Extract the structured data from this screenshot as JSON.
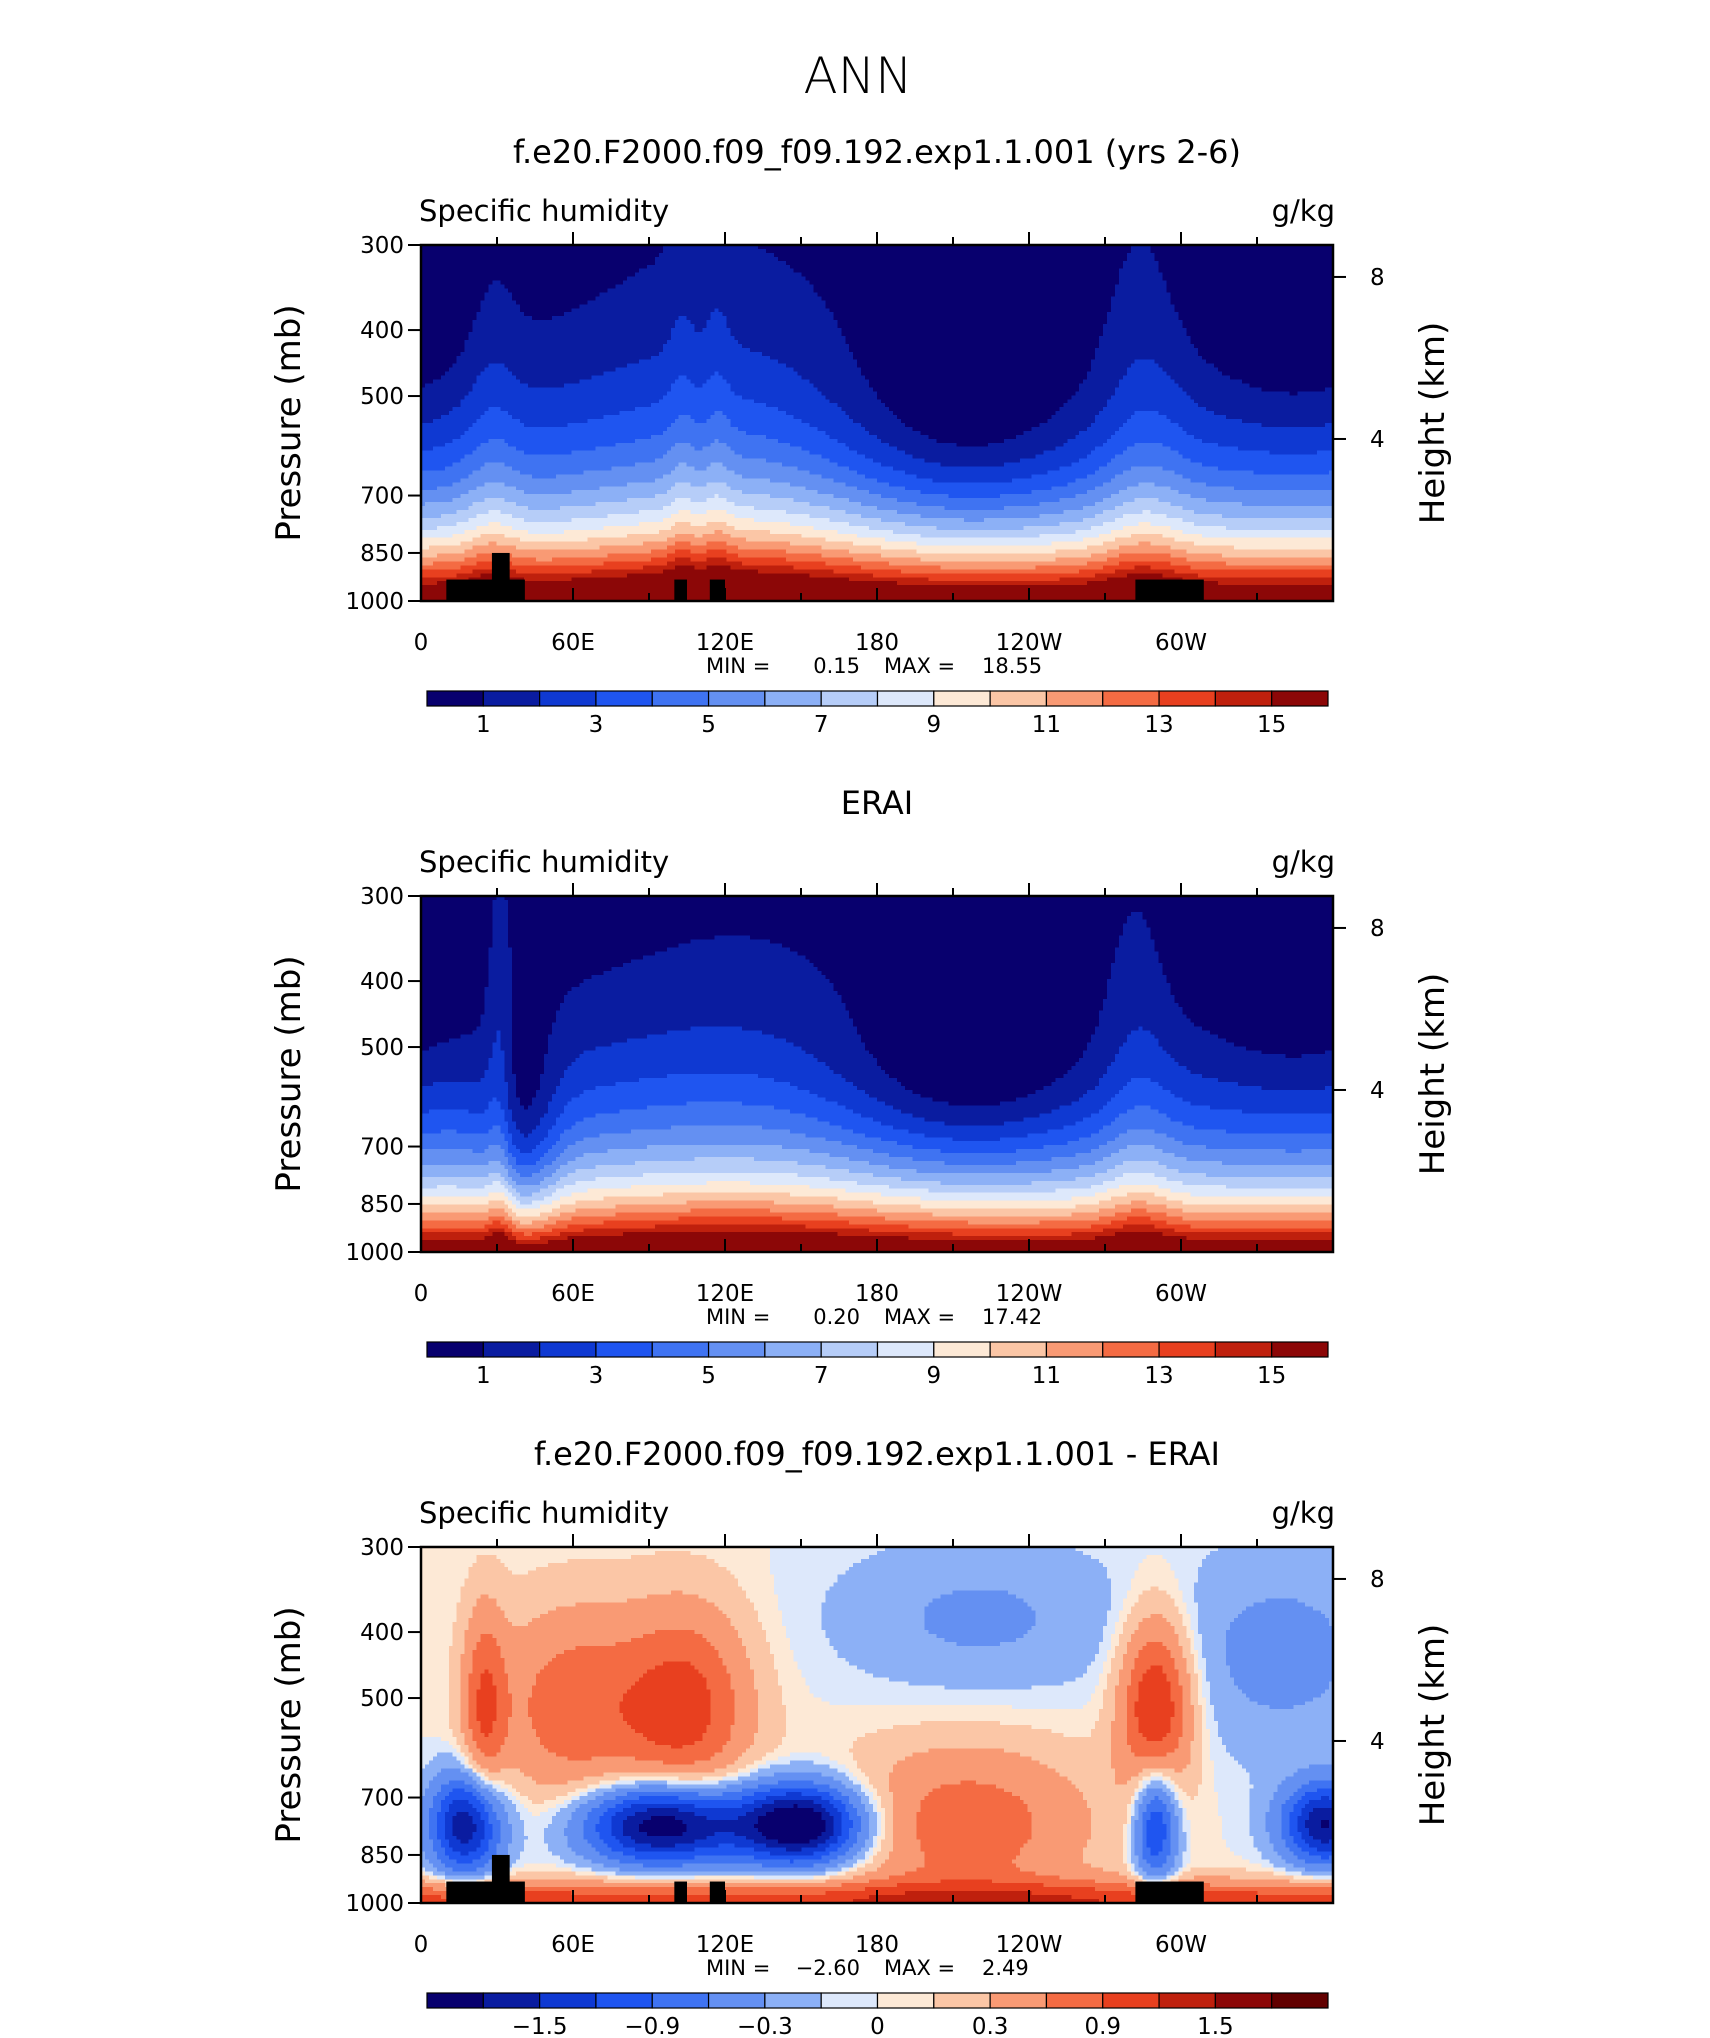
{
  "figure": {
    "title": "ANN"
  },
  "chart_data": [
    {
      "type": "heatmap",
      "title": "f.e20.F2000.f09_f09.192.exp1.1.001 (yrs 2-6)",
      "left_label": "Specific humidity",
      "right_label": "g/kg",
      "xlabel": "",
      "ylabel": "Pressure (mb)",
      "y2label": "Height (km)",
      "x_ticks": [
        "0",
        "60E",
        "120E",
        "180",
        "120W",
        "60W"
      ],
      "x_tick_values": [
        0,
        60,
        120,
        180,
        240,
        300
      ],
      "xlim": [
        0,
        360
      ],
      "y_ticks": [
        "300",
        "400",
        "500",
        "700",
        "850",
        "1000"
      ],
      "y_tick_values": [
        300,
        400,
        500,
        700,
        850,
        1000
      ],
      "ylim": [
        1000,
        300
      ],
      "y2_ticks": [
        "8",
        "4"
      ],
      "y2_tick_values": [
        8,
        4
      ],
      "min_label": "MIN =",
      "min": "0.15",
      "max_label": "MAX =",
      "max": "18.55",
      "colorbar_labels": [
        "1",
        "3",
        "5",
        "7",
        "9",
        "11",
        "13",
        "15"
      ],
      "colorbar_levels": [
        1,
        2,
        3,
        4,
        5,
        6,
        7,
        8,
        9,
        10,
        11,
        12,
        13,
        14,
        15
      ],
      "palette": "sequential",
      "features": {
        "moist_tongues_lon": [
          30,
          105,
          120,
          280
        ],
        "dry_upper_lon": [
          200,
          240
        ]
      }
    },
    {
      "type": "heatmap",
      "title": "ERAI",
      "left_label": "Specific humidity",
      "right_label": "g/kg",
      "xlabel": "",
      "ylabel": "Pressure (mb)",
      "y2label": "Height (km)",
      "x_ticks": [
        "0",
        "60E",
        "120E",
        "180",
        "120W",
        "60W"
      ],
      "x_tick_values": [
        0,
        60,
        120,
        180,
        240,
        300
      ],
      "xlim": [
        0,
        360
      ],
      "y_ticks": [
        "300",
        "400",
        "500",
        "700",
        "850",
        "1000"
      ],
      "y_tick_values": [
        300,
        400,
        500,
        700,
        850,
        1000
      ],
      "ylim": [
        1000,
        300
      ],
      "y2_ticks": [
        "8",
        "4"
      ],
      "y2_tick_values": [
        8,
        4
      ],
      "min_label": "MIN =",
      "min": "0.20",
      "max_label": "MAX =",
      "max": "17.42",
      "colorbar_labels": [
        "1",
        "3",
        "5",
        "7",
        "9",
        "11",
        "13",
        "15"
      ],
      "colorbar_levels": [
        1,
        2,
        3,
        4,
        5,
        6,
        7,
        8,
        9,
        10,
        11,
        12,
        13,
        14,
        15
      ],
      "palette": "sequential",
      "features": {
        "moist_tongues_lon": [
          30,
          280
        ],
        "dry_upper_lon": [
          200,
          240
        ]
      }
    },
    {
      "type": "heatmap",
      "title": "f.e20.F2000.f09_f09.192.exp1.1.001 - ERAI",
      "left_label": "Specific humidity",
      "right_label": "g/kg",
      "xlabel": "",
      "ylabel": "Pressure (mb)",
      "y2label": "Height (km)",
      "x_ticks": [
        "0",
        "60E",
        "120E",
        "180",
        "120W",
        "60W"
      ],
      "x_tick_values": [
        0,
        60,
        120,
        180,
        240,
        300
      ],
      "xlim": [
        0,
        360
      ],
      "y_ticks": [
        "300",
        "400",
        "500",
        "700",
        "850",
        "1000"
      ],
      "y_tick_values": [
        300,
        400,
        500,
        700,
        850,
        1000
      ],
      "ylim": [
        1000,
        300
      ],
      "y2_ticks": [
        "8",
        "4"
      ],
      "y2_tick_values": [
        8,
        4
      ],
      "min_label": "MIN =",
      "min": "−2.60",
      "max_label": "MAX =",
      "max": "2.49",
      "colorbar_labels": [
        "−1.5",
        "−0.9",
        "−0.3",
        "0",
        "0.3",
        "0.9",
        "1.5"
      ],
      "colorbar_levels": [
        -1.8,
        -1.5,
        -1.2,
        -0.9,
        -0.6,
        -0.3,
        -0.1,
        0,
        0.1,
        0.3,
        0.6,
        0.9,
        1.2,
        1.5,
        1.8
      ],
      "palette": "diverging",
      "features": {
        "dry_blobs": [
          {
            "lon": 95,
            "p": 850
          },
          {
            "lon": 150,
            "p": 850
          },
          {
            "lon": 20,
            "p": 850
          },
          {
            "lon": 355,
            "p": 850
          }
        ],
        "moist_blobs": [
          {
            "lon": 105,
            "p": 500
          },
          {
            "lon": 290,
            "p": 500
          },
          {
            "lon": 25,
            "p": 500
          }
        ]
      }
    }
  ],
  "topography": [
    {
      "lon0": 10,
      "lon1": 41,
      "p": 930
    },
    {
      "lon0": 28,
      "lon1": 35,
      "p": 850
    },
    {
      "lon0": 100,
      "lon1": 105,
      "p": 930
    },
    {
      "lon0": 114,
      "lon1": 120,
      "p": 930
    },
    {
      "lon0": 282,
      "lon1": 309,
      "p": 930
    }
  ],
  "colors": {
    "sequential": [
      "#08006e",
      "#0a1ca0",
      "#0f39d2",
      "#1f55f0",
      "#3f73f2",
      "#6490f2",
      "#8cb0f6",
      "#b6cdf8",
      "#dde8fb",
      "#fde9d6",
      "#fbc6a6",
      "#f99a74",
      "#f46b43",
      "#e8401f",
      "#bf200d",
      "#8c0707"
    ],
    "diverging": [
      "#08006e",
      "#0a1ca0",
      "#0f39d2",
      "#1f55f0",
      "#3f73f2",
      "#6490f2",
      "#8cb0f6",
      "#dde8fb",
      "#fde9d6",
      "#fbc6a6",
      "#f99a74",
      "#f46b43",
      "#e8401f",
      "#bf200d",
      "#8c0707",
      "#620000"
    ],
    "topography": "#000000"
  }
}
